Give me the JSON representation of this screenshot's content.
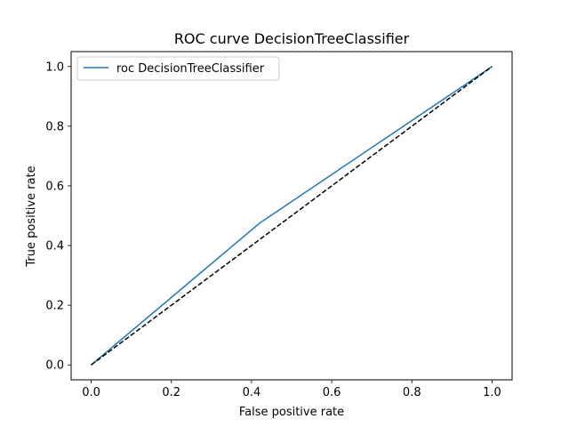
{
  "chart_data": {
    "type": "line",
    "title": "ROC curve DecisionTreeClassifier",
    "xlabel": "False positive rate",
    "ylabel": "True positive rate",
    "xlim": [
      -0.05,
      1.05
    ],
    "ylim": [
      -0.05,
      1.05
    ],
    "xticks": [
      0.0,
      0.2,
      0.4,
      0.6,
      0.8,
      1.0
    ],
    "yticks": [
      0.0,
      0.2,
      0.4,
      0.6,
      0.8,
      1.0
    ],
    "xtick_labels": [
      "0.0",
      "0.2",
      "0.4",
      "0.6",
      "0.8",
      "1.0"
    ],
    "ytick_labels": [
      "0.0",
      "0.2",
      "0.4",
      "0.6",
      "0.8",
      "1.0"
    ],
    "grid": false,
    "legend_position": "upper-left",
    "series": [
      {
        "name": "roc DecisionTreeClassifier",
        "color": "#1f77b4",
        "style": "solid",
        "x": [
          0.0,
          0.42,
          1.0
        ],
        "y": [
          0.0,
          0.475,
          1.0
        ]
      },
      {
        "color": "#000000",
        "style": "dashed",
        "x": [
          0.0,
          1.0
        ],
        "y": [
          0.0,
          1.0
        ]
      }
    ]
  }
}
